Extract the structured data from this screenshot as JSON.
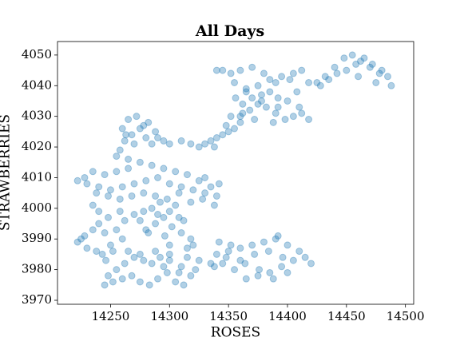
{
  "chart_data": {
    "type": "scatter",
    "title": "All Days",
    "xlabel": "ROSES",
    "ylabel": "STRAWBERRIES",
    "color": "#1f77b4",
    "alpha": 0.35,
    "xlim": [
      14205,
      14507
    ],
    "ylim": [
      3968.7,
      4054.4
    ],
    "xticks": [
      14250,
      14300,
      14350,
      14400,
      14450,
      14500
    ],
    "yticks": [
      3970,
      3980,
      3990,
      4000,
      4010,
      4020,
      4030,
      4040,
      4050
    ],
    "x": [
      14245,
      14252,
      14260,
      14268,
      14275,
      14283,
      14290,
      14298,
      14305,
      14312,
      14318,
      14310,
      14300,
      14292,
      14285,
      14278,
      14270,
      14262,
      14255,
      14248,
      14265,
      14275,
      14288,
      14300,
      14315,
      14325,
      14335,
      14322,
      14308,
      14295,
      14340,
      14350,
      14360,
      14370,
      14380,
      14390,
      14400,
      14410,
      14420,
      14415,
      14405,
      14395,
      14385,
      14375,
      14365,
      14355,
      14345,
      14338,
      14348,
      14360,
      14372,
      14384,
      14396,
      14400,
      14388,
      14376,
      14364,
      14352,
      14342,
      14392,
      14222,
      14228,
      14235,
      14240,
      14245,
      14250,
      14238,
      14230,
      14225,
      14243,
      14255,
      14262,
      14270,
      14258,
      14248,
      14240,
      14235,
      14246,
      14252,
      14260,
      14280,
      14288,
      14295,
      14302,
      14310,
      14318,
      14300,
      14290,
      14285,
      14308,
      14275,
      14282,
      14296,
      14312,
      14320,
      14292,
      14305,
      14315,
      14278,
      14300,
      14222,
      14230,
      14240,
      14250,
      14260,
      14270,
      14280,
      14290,
      14300,
      14310,
      14320,
      14330,
      14340,
      14335,
      14325,
      14315,
      14305,
      14295,
      14285,
      14275,
      14265,
      14255,
      14245,
      14235,
      14228,
      14238,
      14248,
      14258,
      14268,
      14278,
      14288,
      14298,
      14308,
      14318,
      14328,
      14338,
      14342,
      14330,
      14265,
      14255,
      14258,
      14262,
      14268,
      14275,
      14282,
      14288,
      14265,
      14272,
      14280,
      14260,
      14285,
      14290,
      14278,
      14270,
      14263,
      14295,
      14300,
      14310,
      14318,
      14325,
      14330,
      14335,
      14340,
      14345,
      14350,
      14338,
      14348,
      14355,
      14360,
      14352,
      14360,
      14368,
      14375,
      14382,
      14390,
      14398,
      14405,
      14412,
      14418,
      14410,
      14400,
      14392,
      14385,
      14378,
      14370,
      14362,
      14356,
      14365,
      14375,
      14385,
      14395,
      14405,
      14412,
      14402,
      14390,
      14380,
      14370,
      14360,
      14352,
      14345,
      14340,
      14355,
      14365,
      14378,
      14392,
      14408,
      14418,
      14388,
      14372,
      14362,
      14425,
      14432,
      14440,
      14448,
      14455,
      14462,
      14470,
      14478,
      14485,
      14480,
      14472,
      14465,
      14458,
      14450,
      14442,
      14435,
      14428,
      14460,
      14475,
      14488
    ],
    "y": [
      3975,
      3976,
      3977,
      3978,
      3976,
      3975,
      3977,
      3979,
      3976,
      3975,
      3978,
      3981,
      3983,
      3984,
      3982,
      3983,
      3984,
      3982,
      3980,
      3978,
      3986,
      3985,
      3986,
      3985,
      3984,
      3983,
      3982,
      3980,
      3979,
      3981,
      3985,
      3986,
      3987,
      3988,
      3989,
      3990,
      3988,
      3986,
      3982,
      3984,
      3983,
      3981,
      3979,
      3978,
      3977,
      3980,
      3982,
      3981,
      3984,
      3983,
      3985,
      3986,
      3984,
      3979,
      3977,
      3980,
      3982,
      3988,
      3989,
      3991,
      3989,
      3991,
      3993,
      3995,
      3992,
      3988,
      3986,
      3987,
      3990,
      3985,
      3993,
      3996,
      3998,
      3999,
      3997,
      3999,
      4001,
      3983,
      3986,
      3990,
      3993,
      3995,
      3997,
      3994,
      3992,
      3990,
      3999,
      3998,
      4000,
      3997,
      3996,
      3992,
      3991,
      3996,
      3988,
      4002,
      4001,
      3987,
      3999,
      3988,
      4009,
      4008,
      4007,
      4006,
      4007,
      4008,
      4009,
      4010,
      4008,
      4007,
      4006,
      4005,
      4004,
      4007,
      4009,
      4011,
      4012,
      4013,
      4014,
      4015,
      4013,
      4012,
      4011,
      4012,
      4010,
      4005,
      4004,
      4003,
      4004,
      4005,
      4004,
      4003,
      4005,
      4002,
      4003,
      4001,
      4008,
      4010,
      4016,
      4017,
      4019,
      4022,
      4024,
      4026,
      4028,
      4025,
      4029,
      4030,
      4023,
      4026,
      4021,
      4023,
      4027,
      4021,
      4024,
      4022,
      4021,
      4022,
      4021,
      4020,
      4021,
      4022,
      4023,
      4024,
      4025,
      4020,
      4027,
      4026,
      4028,
      4030,
      4030,
      4032,
      4034,
      4033,
      4031,
      4029,
      4030,
      4031,
      4029,
      4033,
      4035,
      4036,
      4038,
      4037,
      4036,
      4034,
      4036,
      4038,
      4040,
      4042,
      4043,
      4044,
      4045,
      4042,
      4041,
      4044,
      4046,
      4045,
      4044,
      4045,
      4045,
      4041,
      4039,
      4035,
      4033,
      4038,
      4041,
      4028,
      4029,
      4031,
      4041,
      4043,
      4046,
      4049,
      4050,
      4048,
      4046,
      4044,
      4043,
      4045,
      4047,
      4049,
      4047,
      4045,
      4044,
      4042,
      4040,
      4043,
      4041,
      4040
    ]
  }
}
